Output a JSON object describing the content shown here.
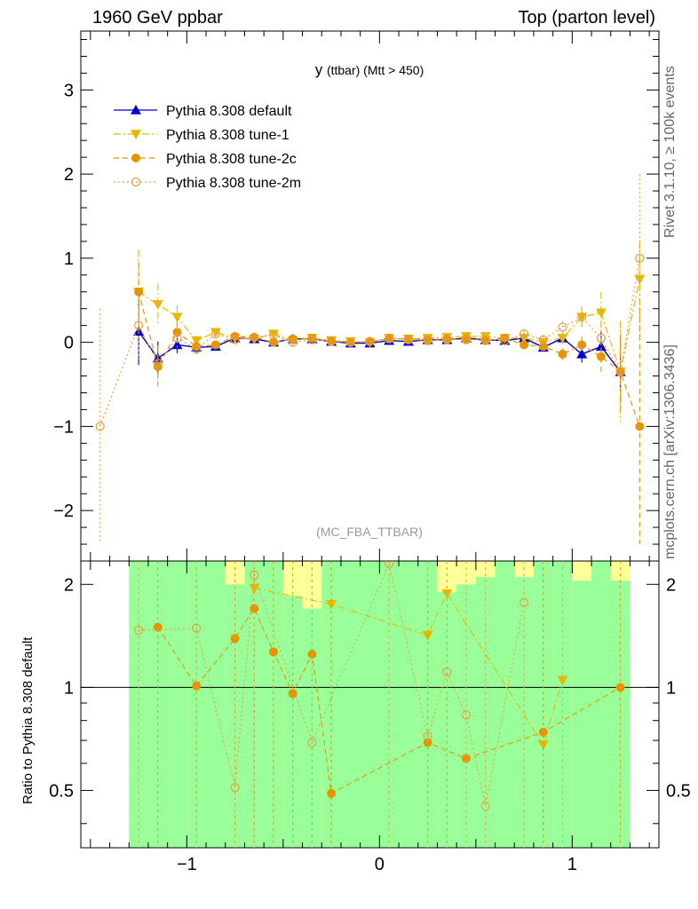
{
  "header": {
    "left": "1960 GeV ppbar",
    "right": "Top (parton level)"
  },
  "side_labels": {
    "rivet": "Rivet 3.1.10, ≥ 100k events",
    "mcplots": "mcplots.cern.ch [arXiv:1306.3436]"
  },
  "chart_data": [
    {
      "type": "line",
      "title": "y (ttbar) (Mtt > 450)",
      "title_main": "y",
      "title_sub": "(ttbar) (Mtt > 450)",
      "watermark": "(MC_FBA_TTBAR)",
      "xlim": [
        -1.55,
        1.45
      ],
      "ylim": [
        -2.6,
        3.7
      ],
      "x_ticks": [
        "−1",
        "0",
        "1"
      ],
      "y_ticks": [
        "−2",
        "−1",
        "0",
        "1",
        "2",
        "3"
      ],
      "legend_position": "top-left",
      "series": [
        {
          "name": "Pythia 8.308 default",
          "color": "#0000cc",
          "marker": "triangle-up",
          "line": "solid",
          "x": [
            -1.25,
            -1.15,
            -1.05,
            -0.95,
            -0.85,
            -0.75,
            -0.65,
            -0.55,
            -0.45,
            -0.35,
            -0.25,
            -0.15,
            -0.05,
            0.05,
            0.15,
            0.25,
            0.35,
            0.45,
            0.55,
            0.65,
            0.75,
            0.85,
            0.95,
            1.05,
            1.15,
            1.25
          ],
          "y": [
            0.13,
            -0.19,
            -0.03,
            -0.06,
            -0.05,
            0.05,
            0.04,
            0.0,
            0.04,
            0.04,
            0.01,
            -0.01,
            -0.01,
            0.02,
            0.01,
            0.03,
            0.03,
            0.05,
            0.03,
            0.02,
            0.05,
            -0.06,
            0.05,
            -0.14,
            -0.05,
            -0.35
          ],
          "err": [
            0.4,
            0.2,
            0.1,
            0.06,
            0.04,
            0.03,
            0.03,
            0.03,
            0.02,
            0.02,
            0.02,
            0.02,
            0.02,
            0.02,
            0.02,
            0.02,
            0.02,
            0.02,
            0.03,
            0.03,
            0.04,
            0.05,
            0.07,
            0.1,
            0.18,
            0.38
          ]
        },
        {
          "name": "Pythia 8.308 tune-1",
          "color": "#e6b800",
          "marker": "triangle-down",
          "line": "dashdot",
          "x": [
            -1.25,
            -1.15,
            -1.05,
            -0.95,
            -0.85,
            -0.75,
            -0.65,
            -0.55,
            -0.45,
            -0.35,
            -0.25,
            -0.15,
            -0.05,
            0.05,
            0.15,
            0.25,
            0.35,
            0.45,
            0.55,
            0.65,
            0.75,
            0.85,
            0.95,
            1.05,
            1.15,
            1.25,
            1.35
          ],
          "y": [
            0.6,
            0.45,
            0.3,
            0.02,
            0.12,
            0.05,
            0.04,
            0.1,
            0.02,
            0.05,
            0.02,
            0.01,
            0.0,
            0.05,
            0.04,
            0.05,
            0.06,
            0.07,
            0.07,
            0.05,
            0.05,
            0.0,
            0.05,
            0.3,
            0.35,
            -0.35,
            0.75
          ],
          "err": [
            0.5,
            0.25,
            0.14,
            0.06,
            0.04,
            0.03,
            0.03,
            0.03,
            0.02,
            0.02,
            0.02,
            0.02,
            0.02,
            0.02,
            0.02,
            0.02,
            0.02,
            0.02,
            0.03,
            0.03,
            0.04,
            0.05,
            0.07,
            0.12,
            0.25,
            0.6,
            0.45
          ]
        },
        {
          "name": "Pythia 8.308 tune-2c",
          "color": "#e69500",
          "marker": "circle-filled",
          "line": "dashed",
          "x": [
            -1.25,
            -1.15,
            -1.05,
            -0.95,
            -0.85,
            -0.75,
            -0.65,
            -0.55,
            -0.45,
            -0.35,
            -0.25,
            -0.15,
            -0.05,
            0.05,
            0.15,
            0.25,
            0.35,
            0.45,
            0.55,
            0.65,
            0.75,
            0.85,
            0.95,
            1.05,
            1.15,
            1.25,
            1.35
          ],
          "y": [
            0.6,
            -0.29,
            0.12,
            -0.05,
            -0.03,
            0.07,
            0.06,
            0.0,
            0.04,
            0.05,
            0.01,
            0.0,
            0.01,
            0.04,
            0.04,
            0.02,
            0.03,
            0.04,
            0.02,
            0.05,
            -0.03,
            -0.05,
            -0.14,
            -0.03,
            -0.17,
            -0.35,
            -1.0
          ],
          "err": [
            0.35,
            0.25,
            0.12,
            0.06,
            0.04,
            0.03,
            0.03,
            0.03,
            0.02,
            0.02,
            0.02,
            0.02,
            0.02,
            0.02,
            0.02,
            0.02,
            0.02,
            0.02,
            0.03,
            0.03,
            0.04,
            0.05,
            0.07,
            0.1,
            0.2,
            0.45,
            1.4
          ]
        },
        {
          "name": "Pythia 8.308 tune-2m",
          "color": "#e6a040",
          "marker": "circle-open",
          "line": "dotted",
          "x": [
            -1.45,
            -1.25,
            -1.15,
            -1.05,
            -0.95,
            -0.85,
            -0.75,
            -0.65,
            -0.55,
            -0.45,
            -0.35,
            -0.25,
            -0.15,
            -0.05,
            0.05,
            0.15,
            0.25,
            0.35,
            0.45,
            0.55,
            0.65,
            0.75,
            0.85,
            0.95,
            1.05,
            1.15,
            1.25,
            1.35
          ],
          "y": [
            -1.0,
            0.2,
            -0.25,
            0.05,
            -0.08,
            0.1,
            0.03,
            0.06,
            0.09,
            0.0,
            0.03,
            0.02,
            0.0,
            0.01,
            0.05,
            0.03,
            0.04,
            0.04,
            0.03,
            0.04,
            0.02,
            0.1,
            0.03,
            0.18,
            0.3,
            0.05,
            -0.35,
            1.0
          ],
          "err": [
            1.4,
            0.4,
            0.2,
            0.12,
            0.06,
            0.04,
            0.03,
            0.03,
            0.03,
            0.02,
            0.02,
            0.02,
            0.02,
            0.02,
            0.02,
            0.02,
            0.02,
            0.02,
            0.02,
            0.03,
            0.03,
            0.04,
            0.05,
            0.07,
            0.12,
            0.2,
            0.5,
            1.0
          ]
        }
      ]
    },
    {
      "type": "line",
      "ylabel": "Ratio to Pythia 8.308 default",
      "xlim": [
        -1.55,
        1.45
      ],
      "ylim": [
        0.34,
        2.34
      ],
      "x_ticks": [
        "−1",
        "0",
        "1"
      ],
      "y_ticks": [
        "0.5",
        "1",
        "2"
      ],
      "y_scale": "log",
      "reference_line": 1,
      "band_bins": {
        "x_edges": [
          -1.3,
          -1.2,
          -1.1,
          -1.0,
          -0.9,
          -0.8,
          -0.7,
          -0.6,
          -0.5,
          -0.4,
          -0.3,
          -0.2,
          -0.1,
          0.0,
          0.1,
          0.2,
          0.3,
          0.4,
          0.5,
          0.6,
          0.7,
          0.8,
          0.9,
          1.0,
          1.1,
          1.2,
          1.3
        ],
        "green_top": [
          2.4,
          2.4,
          2.4,
          2.4,
          2.4,
          2.0,
          2.4,
          2.4,
          1.85,
          1.7,
          2.4,
          2.4,
          2.4,
          2.4,
          2.4,
          2.4,
          1.9,
          2.0,
          2.1,
          2.4,
          2.1,
          2.4,
          2.4,
          2.05,
          2.4,
          2.05
        ],
        "yellow_top": [
          2.4,
          2.4,
          2.4,
          2.4,
          2.4,
          2.4,
          2.4,
          2.4,
          2.4,
          2.4,
          2.4,
          2.4,
          2.4,
          2.4,
          2.4,
          2.4,
          2.4,
          2.4,
          2.4,
          2.4,
          2.4,
          2.4,
          2.4,
          2.4,
          2.4,
          2.4
        ],
        "green_bottom": [
          0.3,
          0.3,
          0.3,
          0.3,
          0.3,
          0.3,
          0.3,
          0.3,
          0.3,
          0.3,
          0.3,
          0.3,
          0.3,
          0.3,
          0.3,
          0.3,
          0.3,
          0.3,
          0.3,
          0.3,
          0.3,
          0.3,
          0.3,
          0.3,
          0.3,
          0.3
        ],
        "yellow_bottom": [
          0.3,
          0.3,
          0.3,
          0.3,
          0.3,
          0.3,
          0.3,
          0.3,
          0.3,
          0.3,
          0.3,
          0.3,
          0.3,
          0.3,
          0.3,
          0.3,
          0.3,
          0.3,
          0.3,
          0.3,
          0.3,
          0.3,
          0.3,
          0.3,
          0.3,
          0.3
        ]
      },
      "series": [
        {
          "name": "Pythia 8.308 tune-1",
          "color": "#e6b800",
          "marker": "triangle-down",
          "line": "dashdot",
          "x": [
            -0.65,
            -0.25,
            0.25,
            0.35,
            0.85,
            0.95
          ],
          "y": [
            1.95,
            1.75,
            1.42,
            1.88,
            0.68,
            1.05
          ]
        },
        {
          "name": "Pythia 8.308 tune-2c",
          "color": "#e69500",
          "marker": "circle-filled",
          "line": "dashed",
          "x": [
            -1.15,
            -0.95,
            -0.75,
            -0.65,
            -0.55,
            -0.45,
            -0.35,
            -0.25,
            0.25,
            0.45,
            0.85,
            1.25
          ],
          "y": [
            1.5,
            1.01,
            1.39,
            1.7,
            1.27,
            0.96,
            1.25,
            0.49,
            0.69,
            0.62,
            0.74,
            1.0
          ]
        },
        {
          "name": "Pythia 8.308 tune-2m",
          "color": "#e6a040",
          "marker": "circle-open",
          "line": "dotted",
          "x": [
            -1.25,
            -0.95,
            -0.75,
            -0.65,
            -0.35,
            0.05,
            0.25,
            0.35,
            0.45,
            0.55,
            0.75
          ],
          "y": [
            1.47,
            1.49,
            0.51,
            2.13,
            0.69,
            2.3,
            0.72,
            1.11,
            0.83,
            0.45,
            1.77
          ]
        }
      ]
    }
  ]
}
